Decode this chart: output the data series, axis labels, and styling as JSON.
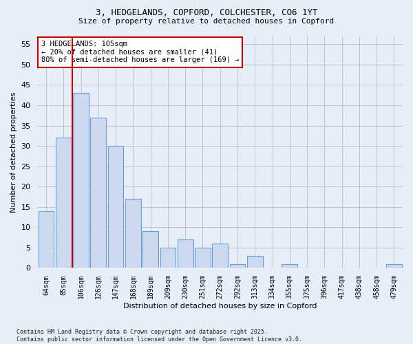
{
  "title1": "3, HEDGELANDS, COPFORD, COLCHESTER, CO6 1YT",
  "title2": "Size of property relative to detached houses in Copford",
  "xlabel": "Distribution of detached houses by size in Copford",
  "ylabel": "Number of detached properties",
  "categories": [
    "64sqm",
    "85sqm",
    "106sqm",
    "126sqm",
    "147sqm",
    "168sqm",
    "189sqm",
    "209sqm",
    "230sqm",
    "251sqm",
    "272sqm",
    "292sqm",
    "313sqm",
    "334sqm",
    "355sqm",
    "375sqm",
    "396sqm",
    "417sqm",
    "438sqm",
    "458sqm",
    "479sqm"
  ],
  "values": [
    14,
    32,
    43,
    37,
    30,
    17,
    9,
    5,
    7,
    5,
    6,
    1,
    3,
    0,
    1,
    0,
    0,
    0,
    0,
    0,
    1
  ],
  "bar_color": "#ccd9ef",
  "bar_edge_color": "#6a9fd8",
  "vline_x_index": 2,
  "vline_color": "#cc0000",
  "annotation_text": "3 HEDGELANDS: 105sqm\n← 20% of detached houses are smaller (41)\n80% of semi-detached houses are larger (169) →",
  "annotation_box_color": "#ffffff",
  "annotation_box_edge": "#cc0000",
  "ylim": [
    0,
    57
  ],
  "yticks": [
    0,
    5,
    10,
    15,
    20,
    25,
    30,
    35,
    40,
    45,
    50,
    55
  ],
  "footer": "Contains HM Land Registry data © Crown copyright and database right 2025.\nContains public sector information licensed under the Open Government Licence v3.0.",
  "bg_color": "#e8eef8",
  "plot_bg_color": "#e8eef8",
  "grid_color": "#b8c4d8"
}
